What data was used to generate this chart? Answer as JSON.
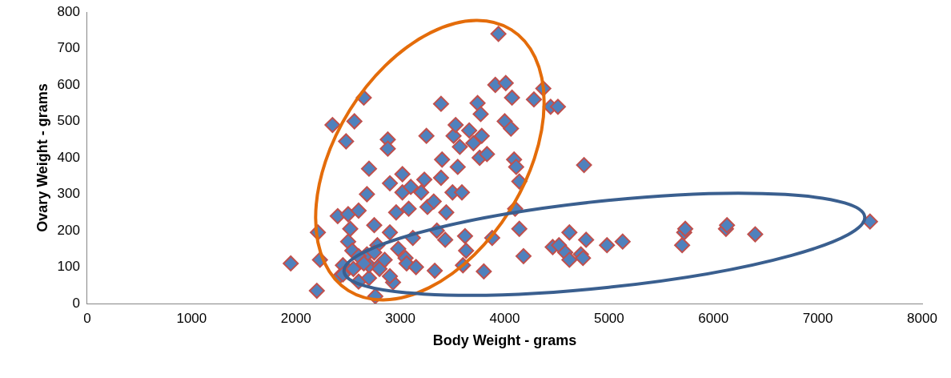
{
  "chart_data": {
    "type": "scatter",
    "xlabel": "Body Weight - grams",
    "ylabel": "Ovary Weight - grams",
    "xlim": [
      0,
      8000
    ],
    "xticks": [
      0,
      1000,
      2000,
      3000,
      4000,
      5000,
      6000,
      7000,
      8000
    ],
    "ylim": [
      0,
      800
    ],
    "yticks": [
      0,
      100,
      200,
      300,
      400,
      500,
      600,
      700,
      800
    ],
    "grid": false,
    "legend": false,
    "marker": "diamond",
    "series": [
      {
        "color": "#4f81bd",
        "x": [
          1950,
          2200,
          2210,
          2230,
          2350,
          2400,
          2420,
          2450,
          2500,
          2480,
          2500,
          2520,
          2600,
          2540,
          2560,
          2600,
          2650,
          2680,
          2700,
          2700,
          2700,
          2680,
          2760,
          2750,
          2780,
          2800,
          2880,
          2880,
          2900,
          2900,
          2930,
          2960,
          2980,
          3020,
          3020,
          3050,
          3060,
          3080,
          3100,
          3120,
          3150,
          3200,
          3230,
          3250,
          3260,
          3320,
          3330,
          3350,
          3390,
          3390,
          3400,
          3440,
          3430,
          3500,
          3510,
          3530,
          3550,
          3570,
          3590,
          3600,
          3620,
          3630,
          3660,
          3700,
          3740,
          3770,
          3760,
          3780,
          3830,
          3800,
          3880,
          3910,
          3940,
          4000,
          4010,
          4060,
          4070,
          4090,
          4110,
          4100,
          4140,
          4140,
          4180,
          4280,
          4370,
          4440,
          4510,
          4460,
          4520,
          4620,
          4580,
          4620,
          4730,
          4760,
          4780,
          4750,
          4980,
          5130,
          5700,
          5720,
          5730,
          6120,
          6130,
          6400,
          7500,
          2450,
          2550,
          2600,
          2650,
          2750,
          2800,
          2850,
          2900
        ],
        "values": [
          110,
          35,
          195,
          120,
          490,
          240,
          75,
          105,
          245,
          445,
          170,
          205,
          60,
          145,
          500,
          255,
          565,
          300,
          370,
          70,
          105,
          135,
          20,
          215,
          160,
          105,
          450,
          425,
          330,
          195,
          58,
          250,
          150,
          305,
          355,
          125,
          110,
          260,
          320,
          180,
          100,
          305,
          340,
          460,
          265,
          280,
          90,
          200,
          548,
          345,
          395,
          250,
          175,
          305,
          460,
          490,
          375,
          430,
          305,
          105,
          185,
          145,
          475,
          440,
          550,
          520,
          400,
          460,
          410,
          88,
          180,
          600,
          740,
          500,
          605,
          480,
          565,
          395,
          375,
          260,
          335,
          205,
          130,
          560,
          590,
          540,
          540,
          155,
          160,
          195,
          140,
          120,
          135,
          380,
          175,
          125,
          160,
          170,
          160,
          195,
          205,
          205,
          215,
          190,
          225,
          80,
          95,
          130,
          110,
          140,
          95,
          120,
          75
        ]
      }
    ]
  }
}
